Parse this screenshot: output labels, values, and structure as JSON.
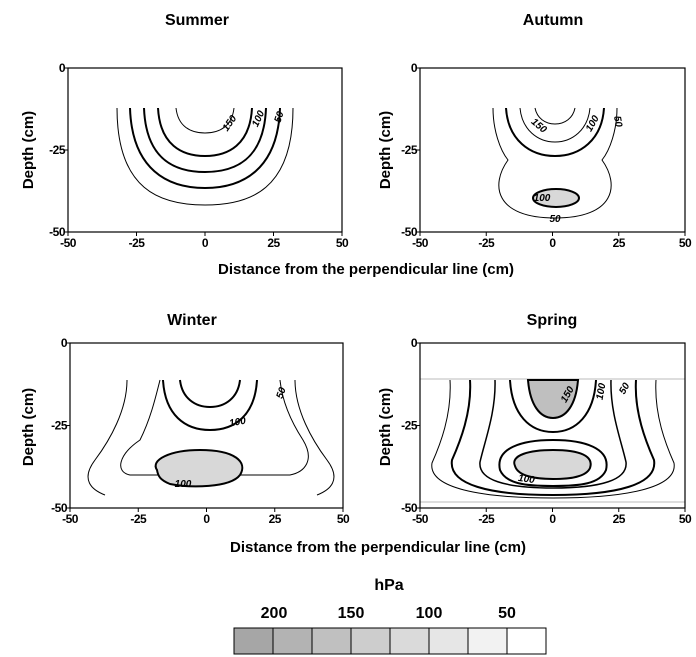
{
  "chart_data": [
    {
      "type": "contour",
      "title": "Summer",
      "xlabel": "",
      "ylabel": "Depth (cm)",
      "x_ticks": [
        "-50",
        "-25",
        "0",
        "25",
        "50"
      ],
      "y_ticks": [
        "0",
        "-25",
        "-50"
      ],
      "xlim": [
        -50,
        50
      ],
      "ylim": [
        -50,
        0
      ],
      "contour_labels": [
        "150",
        "100",
        "50"
      ]
    },
    {
      "type": "contour",
      "title": "Autumn",
      "xlabel": "",
      "ylabel": "Depth (cm)",
      "x_ticks": [
        "-50",
        "-25",
        "0",
        "25",
        "50"
      ],
      "y_ticks": [
        "0",
        "-25",
        "-50"
      ],
      "xlim": [
        -50,
        50
      ],
      "ylim": [
        -50,
        0
      ],
      "contour_labels": [
        "150",
        "100",
        "50",
        "100",
        "50"
      ]
    },
    {
      "type": "contour",
      "title": "Winter",
      "xlabel": "",
      "ylabel": "Depth (cm)",
      "x_ticks": [
        "-50",
        "-25",
        "0",
        "25",
        "50"
      ],
      "y_ticks": [
        "0",
        "-25",
        "-50"
      ],
      "xlim": [
        -50,
        50
      ],
      "ylim": [
        -50,
        0
      ],
      "contour_labels": [
        "100",
        "50",
        "100"
      ]
    },
    {
      "type": "contour",
      "title": "Spring",
      "xlabel": "",
      "ylabel": "Depth (cm)",
      "x_ticks": [
        "-50",
        "-25",
        "0",
        "25",
        "50"
      ],
      "y_ticks": [
        "0",
        "-25",
        "-50"
      ],
      "xlim": [
        -50,
        50
      ],
      "ylim": [
        -50,
        0
      ],
      "contour_labels": [
        "150",
        "100",
        "50",
        "100"
      ]
    }
  ],
  "shared_xlabels": [
    "Distance from the perpendicular line (cm)",
    "Distance from the perpendicular line (cm)"
  ],
  "legend": {
    "title": "hPa",
    "labels": [
      "200",
      "150",
      "100",
      "50"
    ],
    "colors": [
      "#a6a6a6",
      "#b3b3b3",
      "#c0c0c0",
      "#cdcdcd",
      "#dadada",
      "#e6e6e6",
      "#f2f2f2",
      "#ffffff"
    ]
  },
  "colors": {
    "fill_high": "#bfbfbf",
    "fill_mid": "#d8d8d8",
    "stroke": "#000000"
  }
}
